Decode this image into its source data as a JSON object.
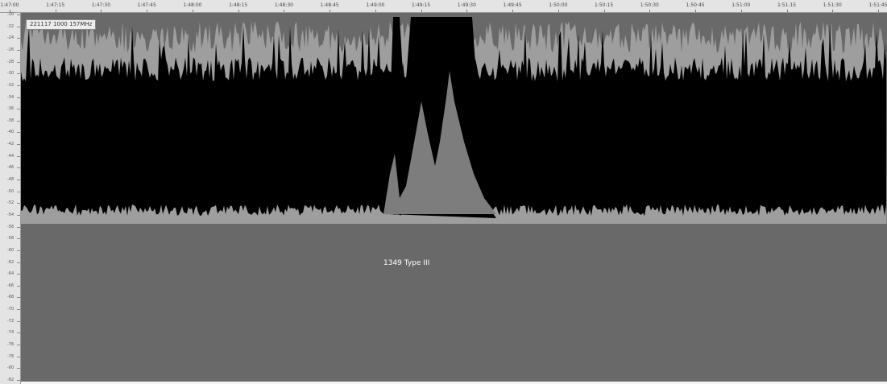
{
  "header": {
    "info_label": "221117 1000 157MHz"
  },
  "x_axis": {
    "ticks": [
      "1:47:00",
      "1:47:15",
      "1:47:30",
      "1:47:45",
      "1:48:00",
      "1:48:15",
      "1:48:30",
      "1:48:45",
      "1:49:00",
      "1:49:15",
      "1:49:30",
      "1:49:45",
      "1:50:00",
      "1:50:15",
      "1:50:30",
      "1:50:45",
      "1:51:00",
      "1:51:15",
      "1:51:30",
      "1:51:45"
    ]
  },
  "y_axis": {
    "ticks": [
      "-20",
      "-22",
      "-24",
      "-26",
      "-28",
      "-30",
      "-32",
      "-34",
      "-36",
      "-38",
      "-40",
      "-42",
      "-44",
      "-46",
      "-48",
      "-50",
      "-52",
      "-54",
      "-56",
      "-58",
      "-60",
      "-62",
      "-64",
      "-66",
      "-68",
      "-70",
      "-72",
      "-74",
      "-76",
      "-78",
      "-80",
      "-82"
    ]
  },
  "annotation": {
    "signal_label": "1349 Type III"
  },
  "colors": {
    "background": "#696969",
    "noise": "#000000",
    "peak_fill": "#7d7d7d",
    "ruler": "#e4e4e4"
  }
}
